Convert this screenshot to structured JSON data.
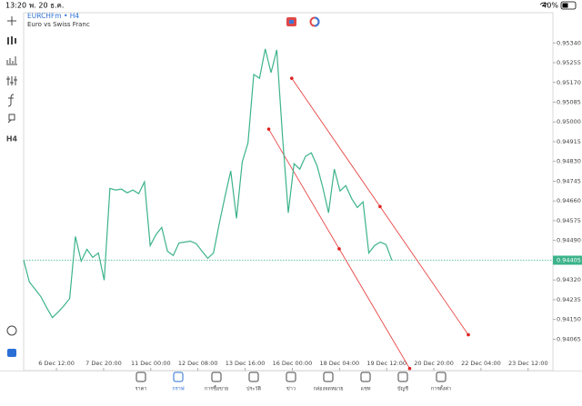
{
  "status_bar": {
    "time": "13:20",
    "date": "พ. 20 ธ.ค.",
    "battery": "40%"
  },
  "header": {
    "symbol": "EURCHFm • H4",
    "description": "Euro vs Swiss Franc"
  },
  "toolbar": {
    "timeframe": "H4"
  },
  "chart": {
    "type": "line",
    "color": "#3cb38a",
    "x": [
      0,
      1,
      2,
      3,
      4,
      5,
      6,
      7,
      8,
      9,
      10,
      11,
      12,
      13,
      14,
      15,
      16,
      17,
      18,
      19,
      20,
      21,
      22,
      23,
      24,
      25,
      26,
      27,
      28,
      29,
      30,
      31,
      32,
      33,
      34,
      35,
      36,
      37,
      38,
      39,
      40,
      41,
      42,
      43,
      44,
      45,
      46,
      47,
      48,
      49,
      50,
      51,
      52,
      53,
      54,
      55,
      56,
      57,
      58,
      59,
      60,
      61,
      62,
      63,
      64
    ],
    "values": [
      0.94405,
      0.94311,
      0.9428,
      0.94248,
      0.94201,
      0.94158,
      0.94182,
      0.94209,
      0.9424,
      0.94507,
      0.94401,
      0.94452,
      0.94417,
      0.94436,
      0.94319,
      0.94714,
      0.94707,
      0.94711,
      0.94695,
      0.94707,
      0.94691,
      0.94742,
      0.94468,
      0.94515,
      0.94546,
      0.94444,
      0.94425,
      0.94479,
      0.94483,
      0.94487,
      0.94476,
      0.94444,
      0.94413,
      0.94436,
      0.94562,
      0.94679,
      0.94789,
      0.94585,
      0.94828,
      0.9491,
      0.95204,
      0.95188,
      0.95314,
      0.95212,
      0.9531,
      0.94938,
      0.94609,
      0.9482,
      0.94797,
      0.94852,
      0.94867,
      0.94812,
      0.94718,
      0.94609,
      0.94797,
      0.94703,
      0.94726,
      0.94671,
      0.94632,
      0.94656,
      0.94436,
      0.94468,
      0.94483,
      0.94472,
      0.94405
    ],
    "xlim": [
      0,
      92
    ],
    "ylim": [
      0.9393,
      0.9547
    ],
    "xticks": [
      {
        "value": 5.7,
        "label": "6 Dec 12:00"
      },
      {
        "value": 13.9,
        "label": "7 Dec 20:00"
      },
      {
        "value": 22.1,
        "label": "11 Dec 00:00"
      },
      {
        "value": 30.3,
        "label": "12 Dec 08:00"
      },
      {
        "value": 38.5,
        "label": "13 Dec 16:00"
      },
      {
        "value": 46.7,
        "label": "16 Dec 00:00"
      },
      {
        "value": 54.9,
        "label": "18 Dec 04:00"
      },
      {
        "value": 63.1,
        "label": "19 Dec 12:00"
      },
      {
        "value": 71.3,
        "label": "20 Dec 20:00"
      },
      {
        "value": 79.5,
        "label": "22 Dec 04:00"
      },
      {
        "value": 87.7,
        "label": "23 Dec 12:00"
      }
    ],
    "yticks": [
      {
        "value": 0.9534,
        "label": "0.95340"
      },
      0.95255,
      {
        "value": 0.9517,
        "label": "0.95170"
      },
      0.95085,
      {
        "value": 0.95,
        "label": "0.95000"
      },
      0.94915,
      {
        "value": 0.9483,
        "label": "0.94830"
      },
      0.94745,
      {
        "value": 0.9466,
        "label": "0.94660"
      },
      0.94575,
      {
        "value": 0.9449,
        "label": "0.94490"
      },
      {
        "value": 0.9432,
        "label": "0.94320"
      },
      0.94235,
      {
        "value": 0.9415,
        "label": "0.94150"
      },
      0.94065
    ],
    "current_price": 0.94405,
    "trend_lines": [
      {
        "x": [
          46.6,
          77.3
        ],
        "values": [
          0.95188,
          0.94084
        ]
      },
      {
        "x": [
          42.6,
          67.1
        ],
        "values": [
          0.94969,
          0.93939
        ]
      }
    ]
  },
  "tabs": [
    "ราคา",
    "กราฟ",
    "การซื้อขาย",
    "ประวัติ",
    "ข่าว",
    "กล่องจดหมาย",
    "แชท",
    "บัญชี",
    "การตั้งค่า"
  ]
}
